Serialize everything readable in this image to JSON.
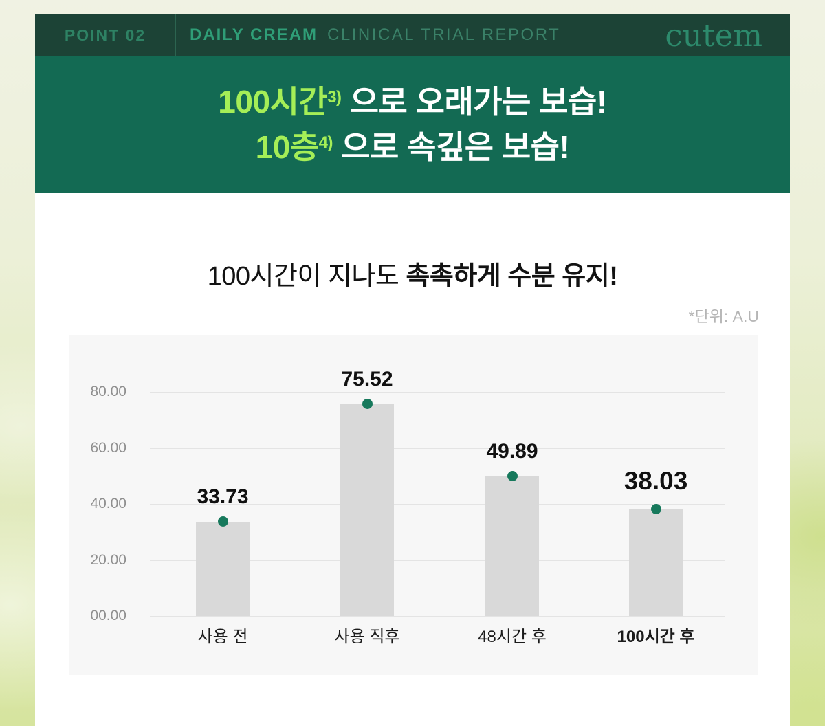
{
  "header": {
    "point_label": "POINT 02",
    "product_label": "DAILY CREAM",
    "report_label": "CLINICAL TRIAL REPORT",
    "brand_logo": "cutem"
  },
  "banner": {
    "line1_highlight": "100시간",
    "line1_sup": "3)",
    "line1_rest": " 으로 오래가는 보습!",
    "line2_highlight": "10층",
    "line2_sup": "4)",
    "line2_rest": " 으로 속깊은 보습!"
  },
  "section": {
    "title_normal": "100시간이 지나도 ",
    "title_bold": "촉촉하게 수분 유지!",
    "unit_note": "*단위: A.U"
  },
  "colors": {
    "header_bg": "#1c4336",
    "banner_bg": "#136a53",
    "highlight_green": "#a5ee57",
    "point_green": "#2e8264",
    "daily_green": "#2f9e77",
    "report_green": "#3a8168",
    "brand_green": "#2d8a6c",
    "chart_bg": "#f7f7f7",
    "grid_line": "#e4e4e4",
    "axis_text": "#8f8f8f",
    "unit_text": "#b5b5b5",
    "bar_fill": "#d9d9d9",
    "dot_fill": "#17795c"
  },
  "chart_data": {
    "type": "bar",
    "title": "100시간이 지나도 촉촉하게 수분 유지!",
    "unit": "A.U",
    "categories": [
      "사용 전",
      "사용 직후",
      "48시간 후",
      "100시간 후"
    ],
    "values": [
      33.73,
      75.52,
      49.89,
      38.03
    ],
    "value_labels": [
      "33.73",
      "75.52",
      "49.89",
      "38.03"
    ],
    "emphasized_index": 3,
    "y_ticks": [
      {
        "value": 0,
        "label": "00.00"
      },
      {
        "value": 20,
        "label": "20.00"
      },
      {
        "value": 40,
        "label": "40.00"
      },
      {
        "value": 60,
        "label": "60.00"
      },
      {
        "value": 80,
        "label": "80.00"
      }
    ],
    "ylim": [
      0,
      88
    ],
    "grid": true,
    "legend_position": "none",
    "xlabel": "",
    "ylabel": ""
  }
}
